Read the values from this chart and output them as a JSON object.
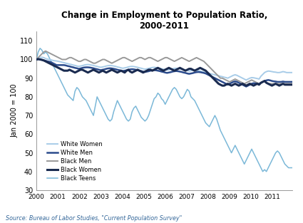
{
  "title": "Change in Employment to Population Ratio,\n2000-2011",
  "ylabel": "Jan 2000 = 100",
  "source": "Source: Bureau of Labor Studies, \"Current Population Survey\"",
  "ylim": [
    30,
    115
  ],
  "yticks": [
    30,
    40,
    50,
    60,
    70,
    80,
    90,
    100,
    110
  ],
  "xlim": [
    2000,
    2011.92
  ],
  "colors": {
    "White Women": "#A8CCE8",
    "White Men": "#2B4B8C",
    "Black Men": "#999999",
    "Black Women": "#1A2B50",
    "Black Teens": "#7BB8D8"
  },
  "linewidths": {
    "White Women": 1.4,
    "White Men": 1.8,
    "Black Men": 1.4,
    "Black Women": 2.2,
    "Black Teens": 1.1
  },
  "white_women": [
    100.0,
    100.5,
    101.0,
    101.2,
    101.0,
    100.5,
    100.2,
    100.0,
    99.8,
    99.5,
    99.3,
    99.2,
    99.0,
    98.8,
    98.5,
    98.3,
    98.0,
    97.8,
    97.5,
    97.3,
    97.0,
    96.8,
    96.5,
    96.3,
    96.5,
    96.7,
    97.0,
    97.2,
    97.3,
    97.2,
    97.0,
    96.8,
    96.5,
    96.3,
    96.0,
    95.8,
    96.0,
    96.2,
    96.5,
    96.7,
    96.8,
    96.7,
    96.5,
    96.3,
    96.0,
    95.8,
    95.5,
    95.3,
    95.5,
    95.7,
    96.0,
    96.2,
    96.3,
    96.2,
    96.0,
    95.8,
    95.5,
    95.3,
    95.0,
    94.8,
    95.0,
    95.2,
    95.5,
    95.7,
    95.8,
    95.7,
    95.5,
    95.3,
    95.0,
    94.8,
    94.5,
    94.3,
    94.5,
    94.7,
    95.0,
    95.2,
    95.3,
    95.2,
    95.0,
    94.8,
    94.5,
    94.3,
    94.0,
    93.8,
    94.0,
    94.2,
    94.3,
    94.2,
    94.0,
    93.8,
    93.5,
    93.3,
    93.0,
    92.8,
    92.5,
    92.3,
    92.0,
    91.8,
    91.5,
    91.3,
    91.0,
    90.8,
    90.5,
    90.3,
    90.0,
    90.5,
    91.0,
    91.5,
    91.8,
    91.5,
    91.0,
    90.5,
    90.0,
    89.5,
    89.0,
    89.5,
    90.0,
    90.3,
    90.2,
    90.0,
    89.8,
    89.5,
    91.0,
    92.0,
    93.0,
    93.5,
    93.8,
    93.7,
    93.5,
    93.3,
    93.2,
    93.0,
    93.0,
    93.2,
    93.5,
    93.3,
    93.0,
    93.0,
    93.0,
    93.0
  ],
  "white_men": [
    100.0,
    100.2,
    100.0,
    99.8,
    99.5,
    99.3,
    99.0,
    98.8,
    98.5,
    98.0,
    97.5,
    97.0,
    97.0,
    97.0,
    97.0,
    97.0,
    96.8,
    96.5,
    96.3,
    96.0,
    95.8,
    95.5,
    95.3,
    95.0,
    95.2,
    95.5,
    95.7,
    95.8,
    95.8,
    95.7,
    95.5,
    95.3,
    95.0,
    94.8,
    94.5,
    94.3,
    94.5,
    94.7,
    95.0,
    95.2,
    95.3,
    95.2,
    95.0,
    94.8,
    94.5,
    94.3,
    94.0,
    93.8,
    94.0,
    94.2,
    94.5,
    94.7,
    94.8,
    94.7,
    94.5,
    94.3,
    94.0,
    93.8,
    93.5,
    93.3,
    93.5,
    93.7,
    94.0,
    94.2,
    94.3,
    94.2,
    94.0,
    93.8,
    93.5,
    93.3,
    93.0,
    92.8,
    93.0,
    93.2,
    93.5,
    93.7,
    93.8,
    93.7,
    93.5,
    93.3,
    93.0,
    92.8,
    92.5,
    92.3,
    92.5,
    92.7,
    93.0,
    93.2,
    93.3,
    93.2,
    93.0,
    92.8,
    92.5,
    92.0,
    91.5,
    91.0,
    90.5,
    90.0,
    89.5,
    89.0,
    88.5,
    88.0,
    87.5,
    87.0,
    86.5,
    87.0,
    87.5,
    88.0,
    88.3,
    88.0,
    87.5,
    87.0,
    86.5,
    86.0,
    85.5,
    86.0,
    86.5,
    87.0,
    87.3,
    87.2,
    87.0,
    86.8,
    87.5,
    88.0,
    88.5,
    88.8,
    89.0,
    88.8,
    88.5,
    88.3,
    88.2,
    88.0,
    88.0,
    88.0,
    88.2,
    88.0,
    88.0,
    88.0,
    88.0,
    88.0
  ],
  "black_men": [
    100.0,
    101.0,
    102.0,
    103.0,
    104.0,
    104.5,
    104.0,
    103.5,
    103.0,
    102.5,
    102.0,
    101.5,
    101.0,
    100.5,
    100.0,
    100.0,
    100.0,
    100.5,
    101.0,
    101.0,
    100.5,
    100.0,
    99.5,
    99.0,
    99.0,
    99.5,
    100.0,
    100.0,
    99.5,
    99.0,
    98.5,
    98.0,
    98.0,
    98.5,
    99.0,
    99.5,
    100.0,
    100.0,
    99.5,
    99.0,
    98.5,
    98.0,
    98.5,
    99.0,
    99.5,
    100.0,
    100.5,
    101.0,
    101.0,
    100.5,
    100.0,
    99.5,
    99.0,
    99.5,
    100.0,
    100.5,
    101.0,
    101.0,
    100.5,
    100.0,
    100.5,
    101.0,
    101.0,
    100.5,
    100.0,
    99.5,
    99.0,
    99.5,
    100.0,
    100.5,
    101.0,
    101.0,
    100.5,
    100.0,
    99.5,
    99.0,
    99.5,
    100.0,
    100.5,
    101.0,
    100.5,
    100.0,
    99.5,
    99.0,
    99.5,
    100.0,
    100.5,
    101.0,
    100.5,
    100.0,
    99.5,
    99.0,
    98.0,
    97.0,
    96.0,
    95.0,
    94.0,
    93.0,
    92.0,
    91.0,
    90.0,
    90.0,
    89.5,
    89.0,
    88.5,
    88.0,
    88.5,
    89.0,
    89.5,
    89.0,
    88.5,
    88.0,
    87.5,
    87.0,
    87.5,
    88.0,
    88.5,
    89.0,
    88.5,
    88.0,
    87.5,
    87.0,
    87.5,
    88.0,
    88.5,
    87.5,
    87.0,
    87.0,
    87.0,
    87.0,
    87.0,
    87.0,
    87.0,
    87.0,
    87.0,
    87.0,
    87.0,
    87.0,
    87.0,
    87.0
  ],
  "black_women": [
    100.0,
    100.2,
    100.0,
    99.8,
    99.5,
    99.0,
    98.5,
    98.0,
    97.5,
    97.0,
    96.5,
    96.0,
    95.5,
    95.0,
    94.5,
    94.0,
    94.0,
    94.0,
    94.5,
    94.0,
    93.5,
    93.0,
    93.5,
    94.0,
    94.5,
    94.5,
    94.0,
    93.5,
    93.0,
    93.5,
    94.0,
    94.5,
    94.0,
    93.5,
    93.0,
    93.5,
    94.0,
    93.5,
    93.0,
    93.5,
    94.0,
    94.5,
    94.0,
    93.5,
    93.0,
    93.5,
    94.0,
    93.5,
    93.0,
    94.0,
    94.5,
    93.5,
    93.0,
    93.5,
    94.0,
    94.5,
    94.0,
    93.5,
    93.0,
    93.5,
    94.0,
    94.5,
    94.5,
    94.0,
    94.5,
    95.0,
    95.5,
    95.0,
    94.5,
    94.0,
    94.5,
    95.0,
    95.5,
    95.0,
    94.5,
    94.0,
    94.5,
    95.0,
    95.5,
    95.0,
    94.5,
    94.0,
    94.5,
    95.0,
    95.0,
    94.5,
    94.0,
    94.5,
    95.0,
    95.5,
    95.0,
    94.5,
    94.0,
    93.0,
    92.0,
    91.0,
    90.0,
    89.0,
    88.0,
    87.0,
    86.5,
    86.0,
    86.0,
    86.5,
    87.0,
    86.5,
    86.0,
    86.5,
    87.0,
    86.5,
    86.0,
    86.5,
    87.0,
    86.5,
    86.0,
    86.5,
    87.0,
    86.5,
    86.0,
    86.5,
    87.0,
    86.5,
    87.5,
    88.0,
    88.5,
    87.5,
    87.0,
    86.5,
    86.0,
    86.5,
    87.0,
    86.5,
    86.0,
    86.5,
    87.0,
    86.5,
    86.5,
    86.5,
    86.5,
    86.5
  ],
  "black_teens": [
    100.0,
    104.0,
    106.0,
    105.0,
    103.0,
    104.0,
    103.0,
    101.0,
    99.0,
    97.0,
    95.0,
    93.0,
    91.0,
    89.0,
    87.0,
    85.0,
    83.0,
    81.0,
    80.0,
    79.0,
    78.0,
    83.0,
    85.0,
    84.0,
    82.0,
    80.0,
    79.0,
    78.0,
    76.0,
    74.0,
    72.0,
    70.0,
    75.0,
    80.0,
    78.0,
    76.0,
    74.0,
    72.0,
    70.0,
    68.0,
    67.0,
    68.0,
    72.0,
    75.0,
    78.0,
    76.0,
    74.0,
    72.0,
    70.0,
    68.0,
    67.0,
    68.0,
    72.0,
    74.0,
    75.0,
    73.0,
    71.0,
    69.0,
    68.0,
    67.0,
    68.0,
    70.0,
    73.0,
    76.0,
    79.0,
    80.0,
    82.0,
    81.0,
    79.0,
    78.0,
    76.0,
    78.0,
    80.0,
    82.0,
    84.0,
    85.0,
    84.0,
    82.0,
    80.0,
    79.0,
    80.0,
    82.0,
    84.0,
    83.0,
    80.0,
    79.0,
    78.0,
    76.0,
    74.0,
    72.0,
    70.0,
    68.0,
    66.0,
    65.0,
    64.0,
    66.0,
    68.0,
    70.0,
    68.0,
    65.0,
    62.0,
    60.0,
    58.0,
    56.0,
    54.0,
    52.0,
    50.0,
    52.0,
    54.0,
    52.0,
    50.0,
    48.0,
    46.0,
    44.0,
    46.0,
    48.0,
    50.0,
    52.0,
    50.0,
    48.0,
    46.0,
    44.0,
    42.0,
    40.0,
    41.0,
    40.0,
    42.0,
    44.0,
    46.0,
    48.0,
    50.0,
    51.0,
    50.0,
    48.0,
    46.0,
    44.0,
    43.0,
    42.0,
    42.0,
    42.0
  ]
}
